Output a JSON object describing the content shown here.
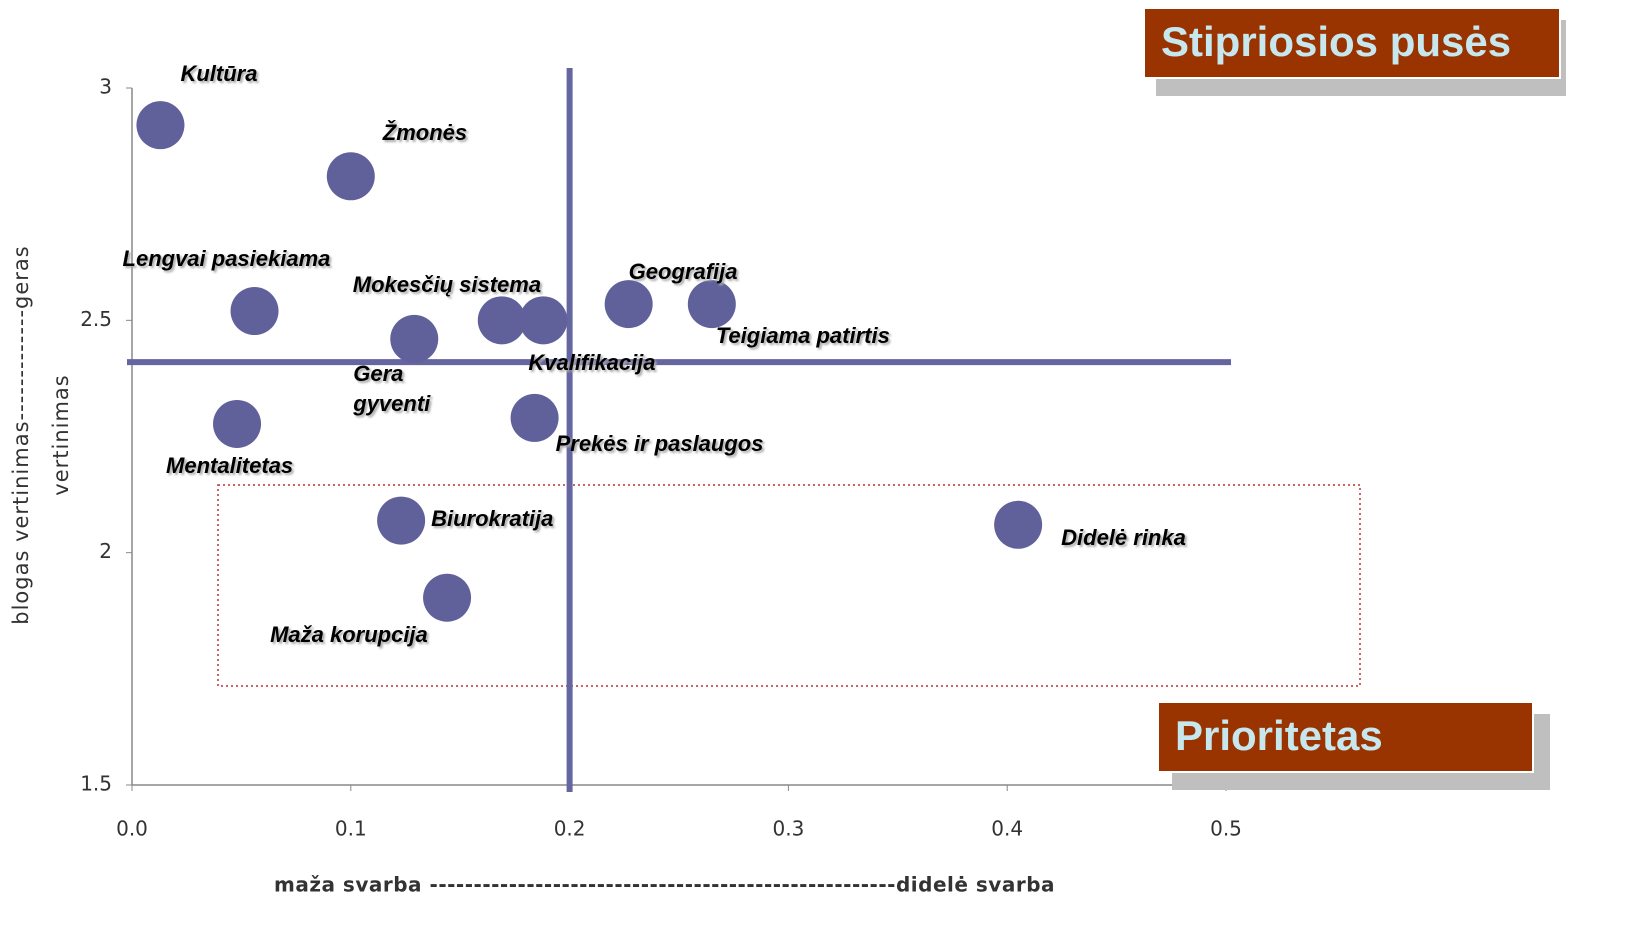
{
  "chart_data": {
    "type": "scatter",
    "x_label": "maža svarba -----------------------------------------------------didelė svarba",
    "y_label": "vertinimas",
    "y_label_outer": "blogas vertinimas-------------geras",
    "point_labels": [
      "Kultūra",
      "Žmonės",
      "Lengvai pasiekiama",
      "Gera gyventi",
      "Mokesčių sistema",
      "Kvalifikacija",
      "Geografija",
      "Teigiama patirtis",
      "Mentalitetas",
      "Prekės ir paslaugos",
      "Biurokratija",
      "Maža korupcija",
      "Didelė rinka"
    ],
    "x": [
      0.013,
      0.1,
      0.056,
      0.129,
      0.169,
      0.188,
      0.227,
      0.265,
      0.048,
      0.184,
      0.123,
      0.144,
      0.405
    ],
    "values": [
      2.92,
      2.81,
      2.52,
      2.46,
      2.5,
      2.5,
      2.535,
      2.535,
      2.277,
      2.29,
      2.069,
      1.903,
      2.06
    ],
    "color": "#60609a",
    "xlim": [
      0,
      0.5
    ],
    "xticks": [
      {
        "value": 0,
        "label": "0.0"
      },
      0.1,
      0.2,
      0.3,
      0.4,
      0.5
    ],
    "ylim": [
      1.5,
      3
    ],
    "yticks": [
      1.5,
      2,
      2.5,
      3
    ],
    "quadrant_lines": {
      "x": 0.2,
      "y": 2.41,
      "color": "#6565a0"
    },
    "annotations": [
      "Stipriosios pusės",
      "Prioritetas"
    ]
  }
}
